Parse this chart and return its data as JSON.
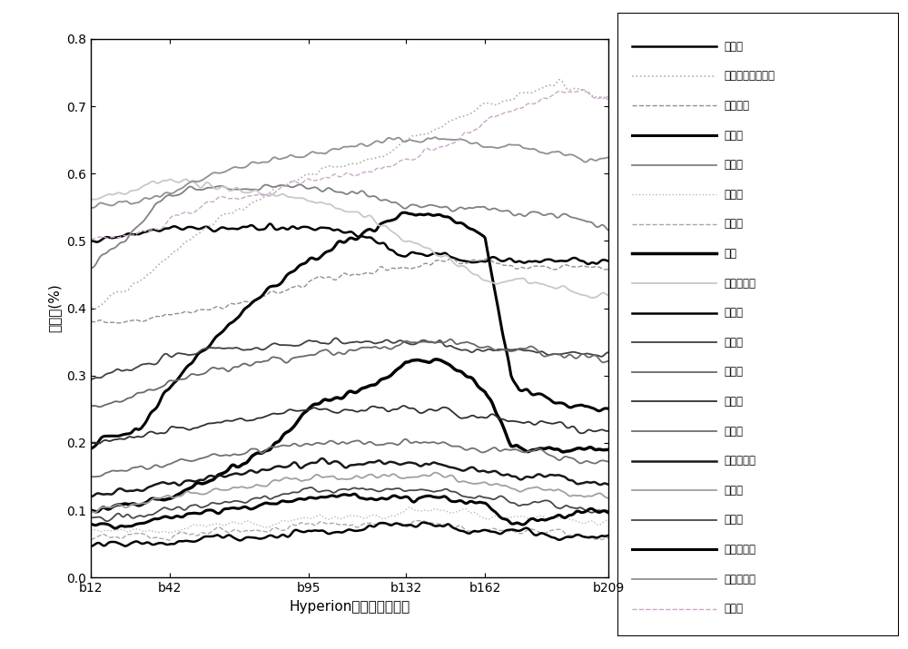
{
  "x_ticks_labels": [
    "b12",
    "b42",
    "b95",
    "b132",
    "b162",
    "b209"
  ],
  "x_ticks_vals": [
    12,
    42,
    95,
    132,
    162,
    209
  ],
  "xlabel": "Hyperion数据对应的波段",
  "ylabel": "反射比(%)",
  "ylim": [
    0.0,
    0.8
  ],
  "yticks": [
    0.0,
    0.1,
    0.2,
    0.3,
    0.4,
    0.5,
    0.6,
    0.7,
    0.8
  ],
  "series": [
    {
      "label": "安山岩",
      "color": "#000000",
      "linestyle": "solid",
      "linewidth": 1.8,
      "kx": [
        12,
        30,
        42,
        60,
        80,
        95,
        115,
        125,
        132,
        145,
        155,
        162,
        175,
        190,
        200,
        209
      ],
      "ky": [
        0.5,
        0.51,
        0.52,
        0.52,
        0.52,
        0.52,
        0.51,
        0.49,
        0.48,
        0.48,
        0.47,
        0.47,
        0.47,
        0.47,
        0.47,
        0.47
      ]
    },
    {
      "label": "半花岗岩，细晶岩",
      "color": "#b0b0b0",
      "linestyle": "dotted",
      "linewidth": 1.2,
      "kx": [
        12,
        30,
        42,
        60,
        80,
        95,
        115,
        125,
        132,
        145,
        155,
        162,
        175,
        190,
        200,
        209
      ],
      "ky": [
        0.4,
        0.44,
        0.48,
        0.53,
        0.57,
        0.6,
        0.62,
        0.63,
        0.65,
        0.67,
        0.69,
        0.7,
        0.72,
        0.73,
        0.72,
        0.71
      ]
    },
    {
      "label": "纯橄榄岩",
      "color": "#909090",
      "linestyle": "dashed",
      "linewidth": 1.0,
      "kx": [
        12,
        30,
        42,
        60,
        80,
        95,
        115,
        125,
        132,
        145,
        155,
        162,
        175,
        190,
        200,
        209
      ],
      "ky": [
        0.38,
        0.38,
        0.39,
        0.4,
        0.42,
        0.44,
        0.45,
        0.46,
        0.46,
        0.47,
        0.47,
        0.47,
        0.46,
        0.46,
        0.46,
        0.46
      ]
    },
    {
      "label": "方解石",
      "color": "#000000",
      "linestyle": "solid",
      "linewidth": 2.2,
      "kx": [
        12,
        30,
        42,
        60,
        80,
        95,
        115,
        125,
        132,
        145,
        155,
        162,
        172,
        175,
        190,
        200,
        209
      ],
      "ky": [
        0.2,
        0.22,
        0.28,
        0.36,
        0.43,
        0.47,
        0.51,
        0.53,
        0.54,
        0.54,
        0.52,
        0.51,
        0.3,
        0.28,
        0.26,
        0.25,
        0.25
      ]
    },
    {
      "label": "花岗岩",
      "color": "#808080",
      "linestyle": "solid",
      "linewidth": 1.3,
      "kx": [
        12,
        30,
        42,
        60,
        80,
        95,
        115,
        125,
        132,
        145,
        155,
        162,
        175,
        190,
        200,
        209
      ],
      "ky": [
        0.46,
        0.52,
        0.57,
        0.58,
        0.58,
        0.58,
        0.57,
        0.56,
        0.55,
        0.55,
        0.55,
        0.55,
        0.54,
        0.54,
        0.53,
        0.52
      ]
    },
    {
      "label": "煌斑岩",
      "color": "#b8b8b8",
      "linestyle": "dotted",
      "linewidth": 1.0,
      "kx": [
        12,
        30,
        42,
        60,
        80,
        95,
        115,
        125,
        132,
        145,
        155,
        162,
        175,
        190,
        200,
        209
      ],
      "ky": [
        0.07,
        0.07,
        0.07,
        0.08,
        0.08,
        0.09,
        0.09,
        0.09,
        0.1,
        0.1,
        0.1,
        0.09,
        0.09,
        0.09,
        0.08,
        0.08
      ]
    },
    {
      "label": "辉綠岩",
      "color": "#a8a8a8",
      "linestyle": "dashed",
      "linewidth": 1.0,
      "kx": [
        12,
        30,
        42,
        60,
        80,
        95,
        115,
        125,
        132,
        145,
        155,
        162,
        175,
        190,
        200,
        209
      ],
      "ky": [
        0.06,
        0.06,
        0.06,
        0.07,
        0.07,
        0.08,
        0.08,
        0.08,
        0.08,
        0.08,
        0.07,
        0.07,
        0.07,
        0.07,
        0.06,
        0.06
      ]
    },
    {
      "label": "基底",
      "color": "#000000",
      "linestyle": "solid",
      "linewidth": 2.5,
      "kx": [
        12,
        30,
        42,
        60,
        80,
        95,
        115,
        125,
        132,
        145,
        155,
        162,
        172,
        175,
        190,
        200,
        209
      ],
      "ky": [
        0.1,
        0.11,
        0.12,
        0.15,
        0.19,
        0.25,
        0.28,
        0.3,
        0.32,
        0.32,
        0.3,
        0.28,
        0.2,
        0.19,
        0.19,
        0.19,
        0.19
      ]
    },
    {
      "label": "碱性花岗岩",
      "color": "#c8c8c8",
      "linestyle": "solid",
      "linewidth": 1.3,
      "kx": [
        12,
        30,
        42,
        60,
        80,
        95,
        115,
        125,
        132,
        145,
        155,
        162,
        175,
        190,
        200,
        209
      ],
      "ky": [
        0.56,
        0.58,
        0.59,
        0.58,
        0.57,
        0.56,
        0.54,
        0.52,
        0.5,
        0.48,
        0.46,
        0.44,
        0.44,
        0.43,
        0.42,
        0.42
      ]
    },
    {
      "label": "苦橄岩",
      "color": "#000000",
      "linestyle": "solid",
      "linewidth": 1.8,
      "kx": [
        12,
        30,
        42,
        60,
        80,
        95,
        115,
        125,
        132,
        145,
        155,
        162,
        175,
        190,
        200,
        209
      ],
      "ky": [
        0.05,
        0.05,
        0.05,
        0.06,
        0.06,
        0.07,
        0.07,
        0.08,
        0.08,
        0.08,
        0.07,
        0.07,
        0.07,
        0.06,
        0.06,
        0.06
      ]
    },
    {
      "label": "流纹岩",
      "color": "#404040",
      "linestyle": "solid",
      "linewidth": 1.3,
      "kx": [
        12,
        30,
        42,
        60,
        80,
        95,
        115,
        125,
        132,
        145,
        155,
        162,
        175,
        190,
        200,
        209
      ],
      "ky": [
        0.3,
        0.31,
        0.33,
        0.34,
        0.34,
        0.35,
        0.35,
        0.35,
        0.35,
        0.35,
        0.34,
        0.34,
        0.34,
        0.33,
        0.33,
        0.33
      ]
    },
    {
      "label": "宽霞岩",
      "color": "#686868",
      "linestyle": "solid",
      "linewidth": 1.3,
      "kx": [
        12,
        30,
        42,
        60,
        80,
        95,
        115,
        125,
        132,
        145,
        155,
        162,
        175,
        190,
        200,
        209
      ],
      "ky": [
        0.25,
        0.27,
        0.29,
        0.31,
        0.32,
        0.33,
        0.34,
        0.34,
        0.35,
        0.35,
        0.35,
        0.34,
        0.34,
        0.33,
        0.33,
        0.32
      ]
    },
    {
      "label": "閃长岩",
      "color": "#303030",
      "linestyle": "solid",
      "linewidth": 1.3,
      "kx": [
        12,
        30,
        42,
        60,
        80,
        95,
        115,
        125,
        132,
        145,
        155,
        162,
        175,
        190,
        200,
        209
      ],
      "ky": [
        0.2,
        0.21,
        0.22,
        0.23,
        0.24,
        0.25,
        0.25,
        0.25,
        0.25,
        0.25,
        0.24,
        0.24,
        0.23,
        0.23,
        0.22,
        0.22
      ]
    },
    {
      "label": "石灰岩",
      "color": "#707070",
      "linestyle": "solid",
      "linewidth": 1.3,
      "kx": [
        12,
        30,
        42,
        60,
        80,
        95,
        115,
        125,
        132,
        145,
        155,
        162,
        175,
        190,
        200,
        209
      ],
      "ky": [
        0.15,
        0.16,
        0.17,
        0.18,
        0.19,
        0.2,
        0.2,
        0.2,
        0.2,
        0.2,
        0.19,
        0.19,
        0.19,
        0.18,
        0.17,
        0.17
      ]
    },
    {
      "label": "石英二长岩",
      "color": "#181818",
      "linestyle": "solid",
      "linewidth": 1.8,
      "kx": [
        12,
        30,
        42,
        60,
        80,
        95,
        115,
        125,
        132,
        145,
        155,
        162,
        175,
        190,
        200,
        209
      ],
      "ky": [
        0.12,
        0.13,
        0.14,
        0.15,
        0.16,
        0.17,
        0.17,
        0.17,
        0.17,
        0.17,
        0.16,
        0.16,
        0.15,
        0.15,
        0.14,
        0.14
      ]
    },
    {
      "label": "苏长岩",
      "color": "#a0a0a0",
      "linestyle": "solid",
      "linewidth": 1.3,
      "kx": [
        12,
        30,
        42,
        60,
        80,
        95,
        115,
        125,
        132,
        145,
        155,
        162,
        175,
        190,
        200,
        209
      ],
      "ky": [
        0.1,
        0.11,
        0.12,
        0.13,
        0.14,
        0.15,
        0.15,
        0.15,
        0.15,
        0.15,
        0.14,
        0.14,
        0.13,
        0.13,
        0.12,
        0.12
      ]
    },
    {
      "label": "斜长岩",
      "color": "#484848",
      "linestyle": "solid",
      "linewidth": 1.3,
      "kx": [
        12,
        30,
        42,
        60,
        80,
        95,
        115,
        125,
        132,
        145,
        155,
        162,
        175,
        190,
        200,
        209
      ],
      "ky": [
        0.09,
        0.09,
        0.1,
        0.11,
        0.12,
        0.13,
        0.13,
        0.13,
        0.13,
        0.13,
        0.12,
        0.12,
        0.11,
        0.11,
        0.1,
        0.1
      ]
    },
    {
      "label": "玄武安山岩",
      "color": "#000000",
      "linestyle": "solid",
      "linewidth": 2.2,
      "kx": [
        12,
        30,
        42,
        60,
        80,
        95,
        115,
        125,
        132,
        145,
        155,
        162,
        172,
        175,
        190,
        200,
        209
      ],
      "ky": [
        0.08,
        0.08,
        0.09,
        0.1,
        0.11,
        0.12,
        0.12,
        0.12,
        0.12,
        0.12,
        0.11,
        0.11,
        0.08,
        0.08,
        0.09,
        0.1,
        0.1
      ]
    },
    {
      "label": "英云閃长岩",
      "color": "#909090",
      "linestyle": "solid",
      "linewidth": 1.3,
      "kx": [
        12,
        30,
        42,
        60,
        80,
        95,
        115,
        125,
        132,
        145,
        155,
        162,
        175,
        190,
        200,
        209
      ],
      "ky": [
        0.55,
        0.56,
        0.57,
        0.6,
        0.62,
        0.63,
        0.64,
        0.65,
        0.65,
        0.65,
        0.65,
        0.64,
        0.64,
        0.63,
        0.62,
        0.62
      ]
    },
    {
      "label": "正长岩",
      "color": "#c8a8c8",
      "linestyle": "dashed",
      "linewidth": 1.0,
      "kx": [
        12,
        30,
        42,
        60,
        80,
        95,
        115,
        125,
        132,
        145,
        155,
        162,
        175,
        190,
        200,
        209
      ],
      "ky": [
        0.5,
        0.51,
        0.53,
        0.56,
        0.57,
        0.59,
        0.6,
        0.61,
        0.62,
        0.64,
        0.66,
        0.68,
        0.7,
        0.72,
        0.72,
        0.71
      ]
    }
  ],
  "noise_seeds": [
    42,
    17,
    33,
    8,
    25,
    71,
    55,
    3,
    19,
    88,
    62,
    44,
    37,
    91,
    13,
    66,
    29,
    7,
    53,
    81
  ],
  "noise_scale": 0.006
}
